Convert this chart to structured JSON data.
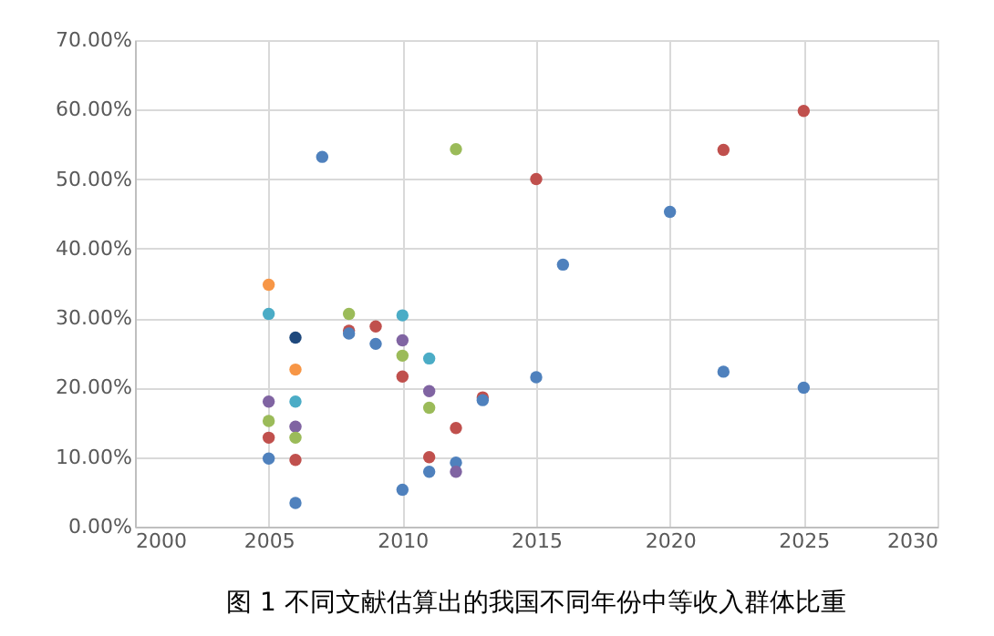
{
  "chart_data": {
    "type": "scatter",
    "title": "图 1 不同文献估算出的我国不同年份中等收入群体比重",
    "x": [
      2005,
      2005,
      2005,
      2005,
      2005,
      2005,
      2006,
      2006,
      2006,
      2006,
      2006,
      2006,
      2006,
      2007,
      2008,
      2008,
      2008,
      2009,
      2009,
      2010,
      2010,
      2010,
      2010,
      2010,
      2011,
      2011,
      2011,
      2011,
      2011,
      2012,
      2012,
      2012,
      2012,
      2013,
      2013,
      2015,
      2015,
      2016,
      2020,
      2022,
      2022,
      2025,
      2025
    ],
    "values": [
      34.8,
      30.6,
      18.0,
      15.2,
      12.8,
      9.8,
      27.2,
      22.6,
      18.0,
      14.4,
      12.8,
      9.6,
      3.4,
      53.2,
      30.6,
      28.2,
      27.8,
      28.8,
      26.3,
      30.4,
      26.8,
      24.6,
      21.6,
      5.3,
      24.2,
      19.5,
      17.1,
      10.0,
      7.9,
      54.3,
      14.2,
      9.2,
      7.9,
      18.6,
      18.2,
      50.0,
      21.5,
      37.7,
      45.3,
      54.2,
      22.3,
      59.8,
      20.0
    ],
    "colors": [
      "#f79646",
      "#4bacc6",
      "#8064a2",
      "#9bbb59",
      "#c0504d",
      "#4f81bd",
      "#1f497d",
      "#f79646",
      "#4bacc6",
      "#8064a2",
      "#9bbb59",
      "#c0504d",
      "#4f81bd",
      "#4f81bd",
      "#9bbb59",
      "#c0504d",
      "#4f81bd",
      "#c0504d",
      "#4f81bd",
      "#4bacc6",
      "#8064a2",
      "#9bbb59",
      "#c0504d",
      "#4f81bd",
      "#4bacc6",
      "#8064a2",
      "#9bbb59",
      "#c0504d",
      "#4f81bd",
      "#9bbb59",
      "#c0504d",
      "#4f81bd",
      "#8064a2",
      "#c0504d",
      "#4f81bd",
      "#c0504d",
      "#4f81bd",
      "#4f81bd",
      "#4f81bd",
      "#c0504d",
      "#4f81bd",
      "#c0504d",
      "#4f81bd"
    ],
    "xlim": [
      2000,
      2030
    ],
    "xticks": [
      2000,
      2005,
      2010,
      2015,
      2020,
      2025,
      2030
    ],
    "ylim": [
      0,
      70
    ],
    "yticks": [
      {
        "value": 0,
        "label": "0.00%"
      },
      {
        "value": 10,
        "label": "10.00%"
      },
      {
        "value": 20,
        "label": "20.00%"
      },
      {
        "value": 30,
        "label": "30.00%"
      },
      {
        "value": 40,
        "label": "40.00%"
      },
      {
        "value": 50,
        "label": "50.00%"
      },
      {
        "value": 60,
        "label": "60.00%"
      },
      {
        "value": 70,
        "label": "70.00%"
      }
    ],
    "grid": true,
    "marker": "circle"
  }
}
